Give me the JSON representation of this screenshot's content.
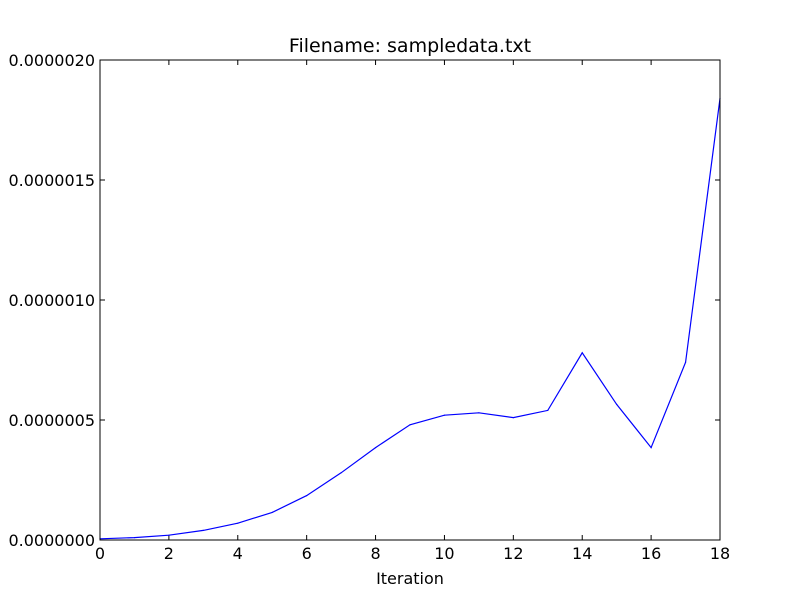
{
  "chart_data": {
    "type": "line",
    "title": "Filename: sampledata.txt",
    "xlabel": "Iteration",
    "ylabel": "",
    "xlim": [
      0,
      18
    ],
    "ylim": [
      0,
      2e-06
    ],
    "x_ticks": [
      0,
      2,
      4,
      6,
      8,
      10,
      12,
      14,
      16,
      18
    ],
    "x_tick_labels": [
      "0",
      "2",
      "4",
      "6",
      "8",
      "10",
      "12",
      "14",
      "16",
      "18"
    ],
    "y_ticks": [
      0,
      5e-07,
      1e-06,
      1.5e-06,
      2e-06
    ],
    "y_tick_labels": [
      "0.0000000",
      "0.0000005",
      "0.0000010",
      "0.0000015",
      "0.0000020"
    ],
    "grid": false,
    "series": [
      {
        "name": "sampledata",
        "color": "#0000ff",
        "x": [
          0,
          1,
          2,
          3,
          4,
          5,
          6,
          7,
          8,
          9,
          10,
          11,
          12,
          13,
          14,
          15,
          16,
          17,
          18
        ],
        "values": [
          5e-09,
          1e-08,
          2e-08,
          4e-08,
          7e-08,
          1.15e-07,
          1.85e-07,
          2.8e-07,
          3.85e-07,
          4.8e-07,
          5.2e-07,
          5.3e-07,
          5.1e-07,
          5.4e-07,
          7.8e-07,
          5.65e-07,
          3.85e-07,
          7.4e-07,
          1.84e-06
        ]
      }
    ]
  }
}
